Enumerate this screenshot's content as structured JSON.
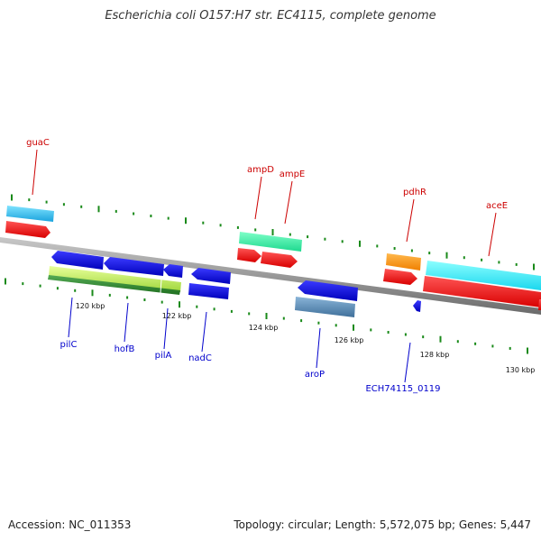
{
  "title": "Escherichia coli O157:H7 str. EC4115, complete genome",
  "footer": {
    "accession": "Accession: NC_011353",
    "summary": "Topology: circular; Length: 5,572,075 bp; Genes: 5,447"
  },
  "colors": {
    "backbone": "#8a8a8a",
    "forward_label": "#cc0000",
    "reverse_label": "#0000cc",
    "tick": "#1a8a1a"
  },
  "scale_labels": [
    "120 kbp",
    "122 kbp",
    "124 kbp",
    "126 kbp",
    "128 kbp",
    "130 kbp"
  ],
  "forward_labels": [
    "guaC",
    "ampD",
    "ampE",
    "pdhR",
    "aceE"
  ],
  "reverse_labels": [
    "pilC",
    "hofB",
    "pilA",
    "nadC",
    "aroP",
    "ECH74115_0119"
  ]
}
